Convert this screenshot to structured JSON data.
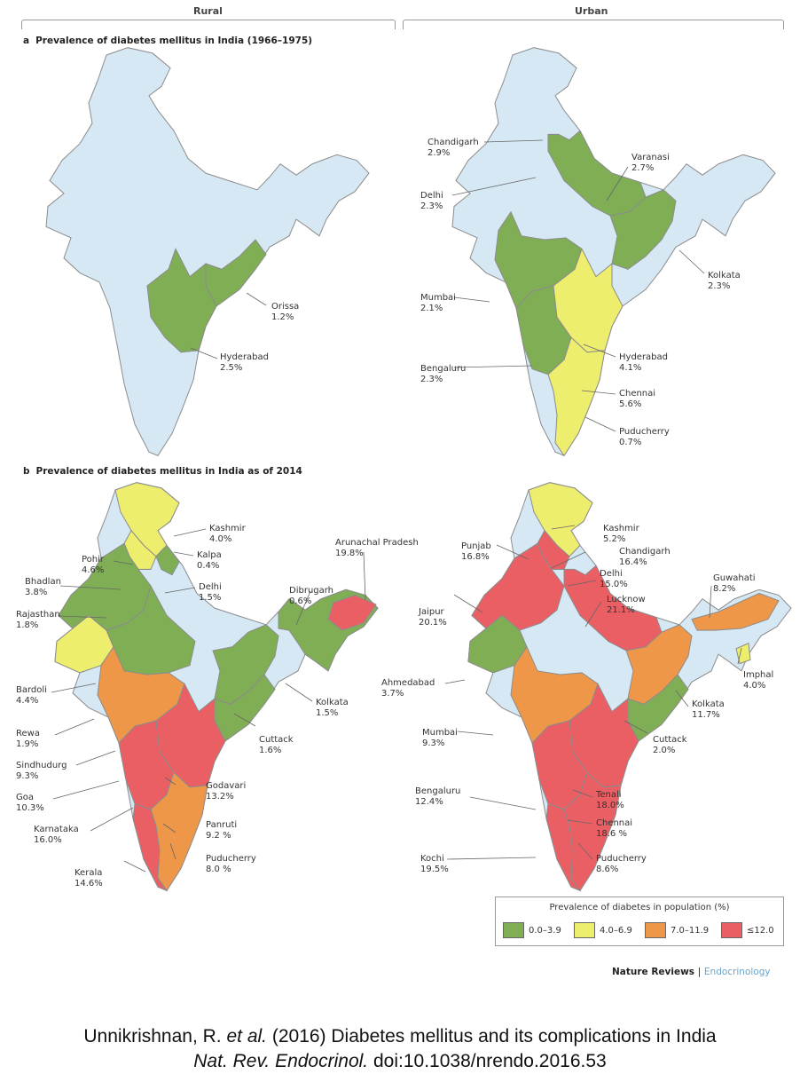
{
  "columns": {
    "rural": "Rural",
    "urban": "Urban"
  },
  "panel_a": {
    "letter": "a",
    "title": "Prevalence of diabetes mellitus in India (1966–1975)"
  },
  "panel_b": {
    "letter": "b",
    "title": "Prevalence of diabetes mellitus in India as of 2014"
  },
  "colors": {
    "none": "#d7e8f5",
    "c1": "#7fae55",
    "c2": "#eeee6e",
    "c3": "#ef9748",
    "c4": "#ea5f64",
    "border": "#8c8c8c"
  },
  "labels": {
    "a_rural": [
      {
        "name": "Orissa",
        "value": "1.2%"
      },
      {
        "name": "Hyderabad",
        "value": "2.5%"
      }
    ],
    "a_urban": [
      {
        "name": "Chandigarh",
        "value": "2.9%"
      },
      {
        "name": "Varanasi",
        "value": "2.7%"
      },
      {
        "name": "Delhi",
        "value": "2.3%"
      },
      {
        "name": "Kolkata",
        "value": "2.3%"
      },
      {
        "name": "Mumbai",
        "value": "2.1%"
      },
      {
        "name": "Hyderabad",
        "value": "4.1%"
      },
      {
        "name": "Bengaluru",
        "value": "2.3%"
      },
      {
        "name": "Chennai",
        "value": "5.6%"
      },
      {
        "name": "Puducherry",
        "value": "0.7%"
      }
    ],
    "b_rural": [
      {
        "name": "Kashmir",
        "value": "4.0%"
      },
      {
        "name": "Pohir",
        "value": "4.6%"
      },
      {
        "name": "Kalpa",
        "value": "0.4%"
      },
      {
        "name": "Bhadlan",
        "value": "3.8%"
      },
      {
        "name": "Delhi",
        "value": "1.5%"
      },
      {
        "name": "Arunachal Pradesh",
        "value": "19.8%"
      },
      {
        "name": "Dibrugarh",
        "value": "0.6%"
      },
      {
        "name": "Rajasthan",
        "value": "1.8%"
      },
      {
        "name": "Bardoli",
        "value": "4.4%"
      },
      {
        "name": "Kolkata",
        "value": "1.5%"
      },
      {
        "name": "Rewa",
        "value": "1.9%"
      },
      {
        "name": "Cuttack",
        "value": "1.6%"
      },
      {
        "name": "Sindhudurg",
        "value": "9.3%"
      },
      {
        "name": "Goa",
        "value": "10.3%"
      },
      {
        "name": "Godavari",
        "value": "13.2%"
      },
      {
        "name": "Karnataka",
        "value": "16.0%"
      },
      {
        "name": "Panruti",
        "value": "9.2 %"
      },
      {
        "name": "Puducherry",
        "value": "8.0 %"
      },
      {
        "name": "Kerala",
        "value": "14.6%"
      }
    ],
    "b_urban": [
      {
        "name": "Kashmir",
        "value": "5.2%"
      },
      {
        "name": "Punjab",
        "value": "16.8%"
      },
      {
        "name": "Chandigarh",
        "value": "16.4%"
      },
      {
        "name": "Delhi",
        "value": "15.0%"
      },
      {
        "name": "Guwahati",
        "value": "8.2%"
      },
      {
        "name": "Lucknow",
        "value": "21.1%"
      },
      {
        "name": "Jaipur",
        "value": "20.1%"
      },
      {
        "name": "Imphal",
        "value": "4.0%"
      },
      {
        "name": "Ahmedabad",
        "value": "3.7%"
      },
      {
        "name": "Kolkata",
        "value": "11.7%"
      },
      {
        "name": "Mumbai",
        "value": "9.3%"
      },
      {
        "name": "Cuttack",
        "value": "2.0%"
      },
      {
        "name": "Bengaluru",
        "value": "12.4%"
      },
      {
        "name": "Tenali",
        "value": "18.0%"
      },
      {
        "name": "Chennai",
        "value": "18.6 %"
      },
      {
        "name": "Kochi",
        "value": "19.5%"
      },
      {
        "name": "Puducherry",
        "value": "8.6%"
      }
    ]
  },
  "legend": {
    "title": "Prevalence of diabetes in population (%)",
    "items": [
      {
        "label": "0.0–3.9",
        "color": "#7fae55"
      },
      {
        "label": "4.0–6.9",
        "color": "#eeee6e"
      },
      {
        "label": "7.0–11.9",
        "color": "#ef9748"
      },
      {
        "label": "≤12.0",
        "color": "#ea5f64"
      }
    ]
  },
  "journal": {
    "name": "Nature Reviews",
    "separator": "|",
    "section": "Endocrinology"
  },
  "citation": {
    "line1_a": "Unnikrishnan, R.",
    "line1_etal": "et al.",
    "line1_b": "(2016)  Diabetes mellitus and its complications in India",
    "line2_journal": "Nat. Rev. Endocrinol.",
    "line2_doi": "doi:10.1038/nrendo.2016.53"
  }
}
